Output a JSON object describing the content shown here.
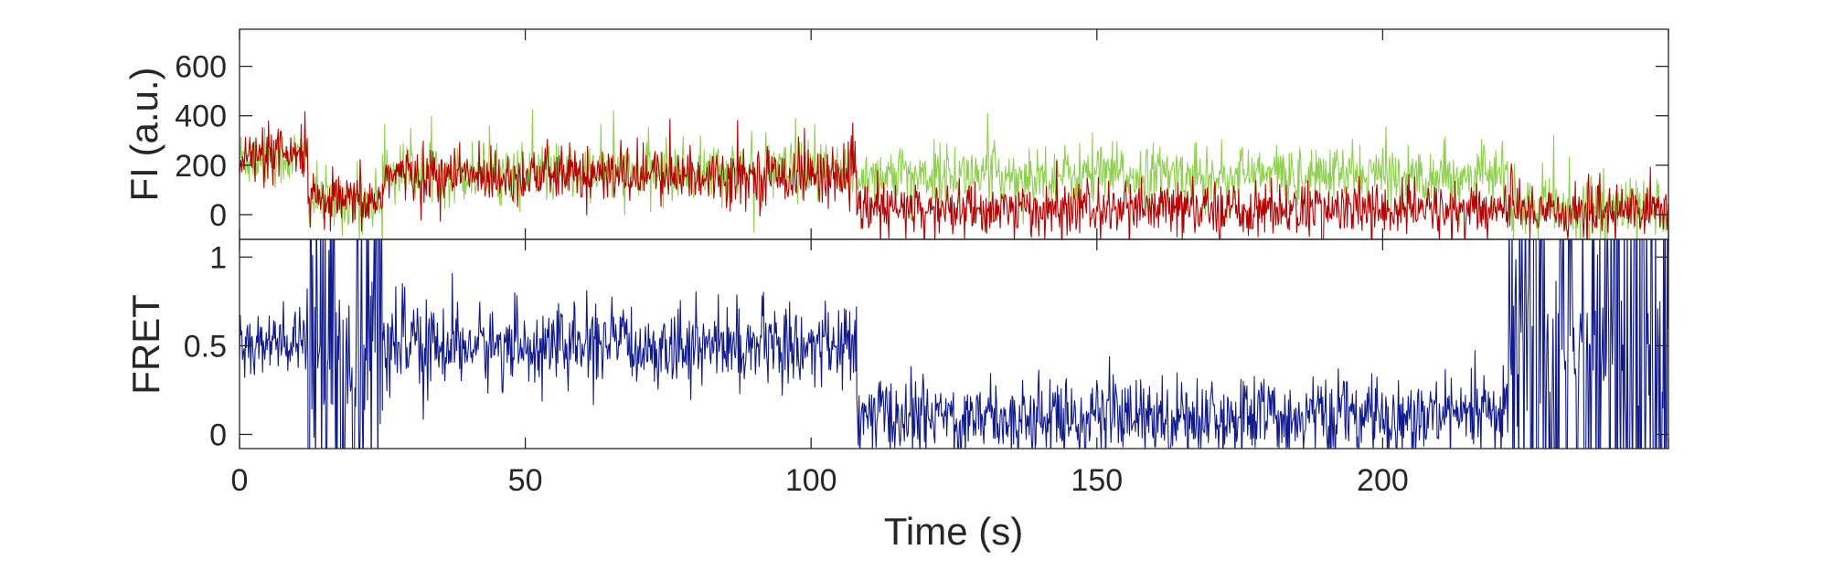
{
  "chart_data": [
    {
      "type": "line",
      "panel": "top",
      "ylabel": "FI (a.u.)",
      "xlabel": "",
      "xlim": [
        0,
        250
      ],
      "ylim": [
        -100,
        750
      ],
      "yticks": [
        0,
        200,
        400,
        600
      ],
      "ytick_labels": [
        "0",
        "200",
        "400",
        "600"
      ],
      "xticks": [
        0,
        50,
        100,
        150,
        200,
        250
      ],
      "grid": false,
      "series": [
        {
          "color": "#8fd14f",
          "noise": 60,
          "segments": [
            {
              "x0": 0,
              "x1": 12,
              "mean": 230
            },
            {
              "x0": 12,
              "x1": 25,
              "mean": 60
            },
            {
              "x0": 25,
              "x1": 108,
              "mean": 170
            },
            {
              "x0": 108,
              "x1": 222,
              "mean": 160
            },
            {
              "x0": 222,
              "x1": 250,
              "mean": 30
            }
          ]
        },
        {
          "color": "#b80000",
          "noise": 55,
          "segments": [
            {
              "x0": 0,
              "x1": 12,
              "mean": 230
            },
            {
              "x0": 12,
              "x1": 25,
              "mean": 50
            },
            {
              "x0": 25,
              "x1": 108,
              "mean": 160
            },
            {
              "x0": 108,
              "x1": 222,
              "mean": 20
            },
            {
              "x0": 222,
              "x1": 250,
              "mean": 20
            }
          ]
        }
      ]
    },
    {
      "type": "line",
      "panel": "bottom",
      "ylabel": "FRET",
      "xlabel": "Time (s)",
      "xlim": [
        0,
        250
      ],
      "ylim": [
        -0.08,
        1.1
      ],
      "yticks": [
        0,
        0.5,
        1
      ],
      "ytick_labels": [
        "0",
        "0.5",
        "1"
      ],
      "xticks": [
        0,
        50,
        100,
        150,
        200,
        250
      ],
      "xtick_labels": [
        "0",
        "50",
        "100",
        "150",
        "200"
      ],
      "grid": false,
      "series": [
        {
          "color": "#101a8f",
          "noise": 0.11,
          "segments": [
            {
              "x0": 0,
              "x1": 12,
              "mean": 0.5
            },
            {
              "x0": 12,
              "x1": 25,
              "mean": 0.45,
              "wild": true
            },
            {
              "x0": 25,
              "x1": 108,
              "mean": 0.5
            },
            {
              "x0": 108,
              "x1": 222,
              "mean": 0.1
            },
            {
              "x0": 222,
              "x1": 250,
              "mean": 0.5,
              "wild": true
            }
          ]
        }
      ]
    }
  ]
}
